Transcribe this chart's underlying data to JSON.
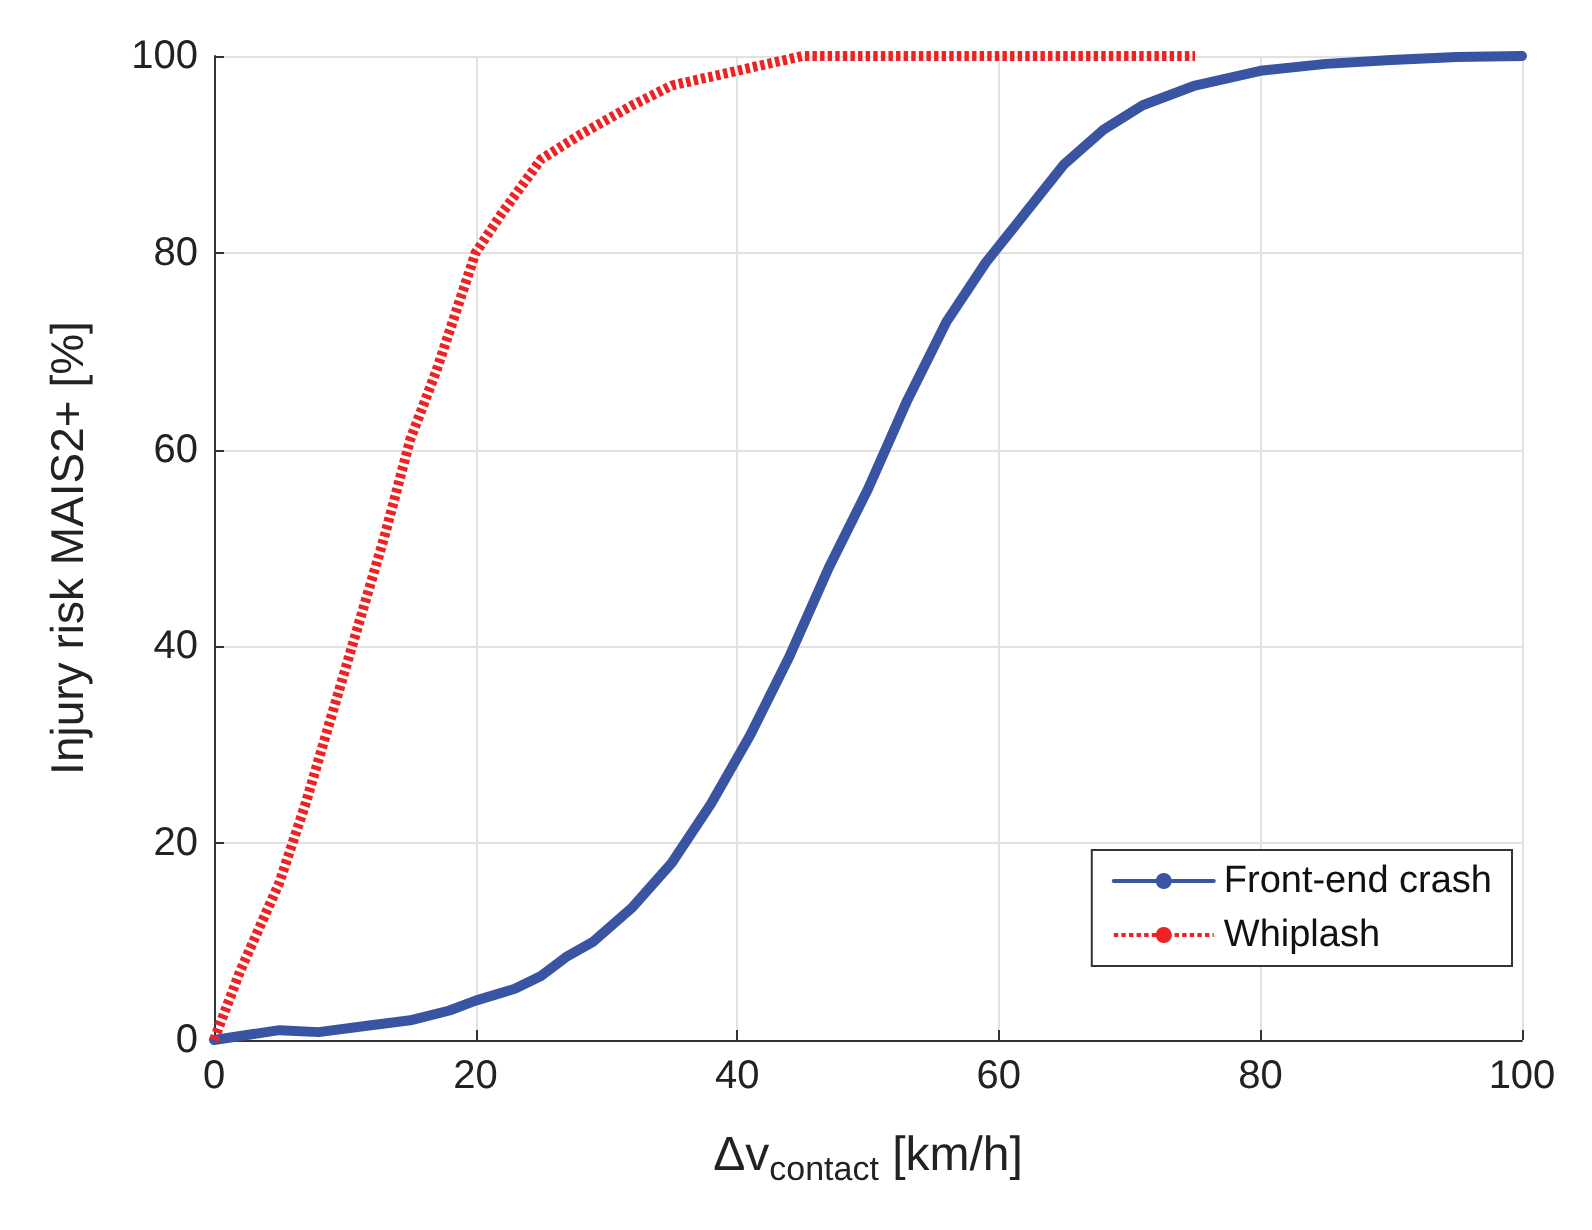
{
  "chart_data": {
    "type": "line",
    "xlabel": "Δv$_{contact}$ [km/h]",
    "ylabel": "Injury risk MAIS2+ [%]",
    "xlim": [
      0,
      100
    ],
    "xticks": [
      0,
      20,
      40,
      60,
      80,
      100
    ],
    "ylim": [
      0,
      100
    ],
    "yticks": [
      0,
      20,
      40,
      60,
      80,
      100
    ],
    "grid": true,
    "legend": "bottom right",
    "marker": "none",
    "series": [
      {
        "name": "Front-end crash",
        "color": "#3a54a4",
        "line_style": "solid",
        "x": [
          0,
          5,
          8,
          12,
          15,
          18,
          20,
          23,
          25,
          27,
          29,
          32,
          35,
          38,
          41,
          44,
          47,
          50,
          53,
          56,
          59,
          62,
          65,
          68,
          71,
          75,
          80,
          85,
          90,
          95,
          100
        ],
        "values": [
          0,
          1,
          0.8,
          1.5,
          2,
          3,
          4,
          5.2,
          6.5,
          8.5,
          10,
          13.5,
          18,
          24,
          31,
          39,
          48,
          56,
          65,
          73,
          79,
          84,
          89,
          92.5,
          95,
          97,
          98.5,
          99.2,
          99.6,
          99.9,
          100
        ]
      },
      {
        "name": "Whiplash",
        "color": "#ee2222",
        "line_style": "dotted",
        "x": [
          0,
          2,
          5,
          7,
          9,
          11,
          13,
          15,
          17,
          19,
          20,
          22,
          25,
          28,
          32,
          35,
          40,
          45,
          50,
          75
        ],
        "values": [
          0,
          7,
          16,
          24,
          33,
          42,
          51,
          61,
          68,
          76,
          80,
          84,
          89.5,
          92,
          95,
          97,
          98.5,
          100,
          100,
          100
        ]
      }
    ]
  }
}
